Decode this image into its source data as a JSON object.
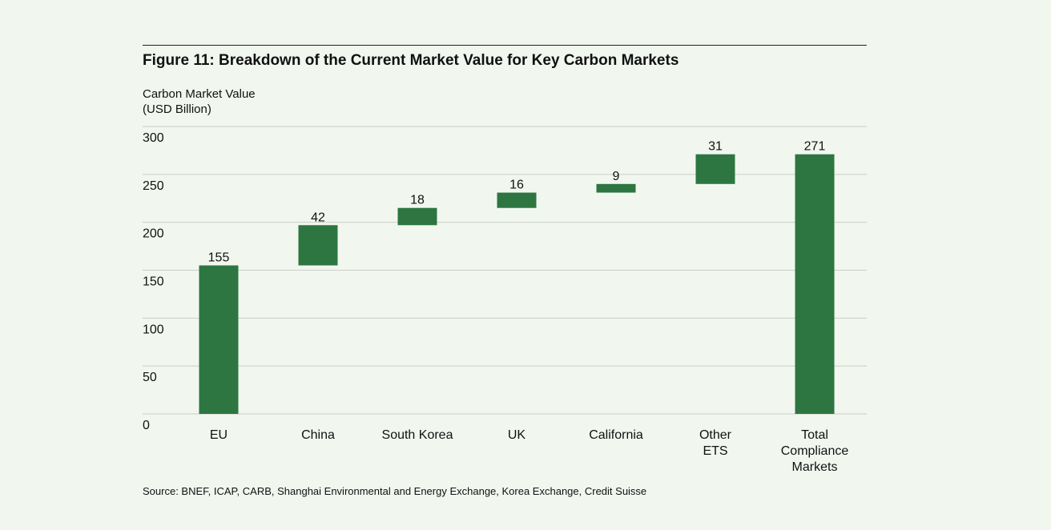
{
  "title": "Figure 11: Breakdown of the Current Market Value for Key Carbon Markets",
  "y_axis_label_line1": "Carbon Market Value",
  "y_axis_label_line2": "(USD Billion)",
  "source": "Source: BNEF, ICAP, CARB, Shanghai Environmental and Energy Exchange, Korea Exchange, Credit Suisse",
  "colors": {
    "bar": "#2d7641",
    "grid": "#c9cec7",
    "background": "#f1f7ef"
  },
  "chart_data": {
    "type": "bar",
    "subtype": "waterfall",
    "title": "Figure 11: Breakdown of the Current Market Value for Key Carbon Markets",
    "ylabel": "Carbon Market Value (USD Billion)",
    "xlabel": "",
    "ylim": [
      0,
      300
    ],
    "yticks": [
      0,
      50,
      100,
      150,
      200,
      250,
      300
    ],
    "grid": true,
    "categories": [
      [
        "EU"
      ],
      [
        "China"
      ],
      [
        "South Korea"
      ],
      [
        "UK"
      ],
      [
        "California"
      ],
      [
        "Other",
        "ETS"
      ],
      [
        "Total",
        "Compliance",
        "Markets"
      ]
    ],
    "values": [
      155,
      42,
      18,
      16,
      9,
      31,
      271
    ],
    "bar_start": [
      0,
      155,
      197,
      215,
      231,
      240,
      0
    ],
    "bar_end": [
      155,
      197,
      215,
      231,
      240,
      271,
      271
    ],
    "labels": [
      "155",
      "42",
      "18",
      "16",
      "9",
      "31",
      "271"
    ]
  }
}
